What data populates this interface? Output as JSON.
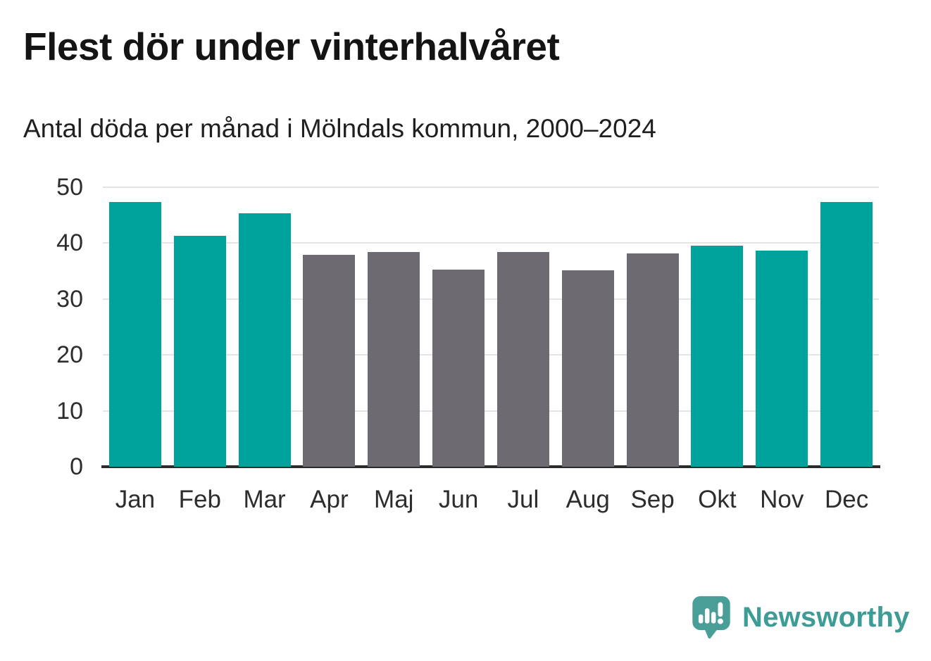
{
  "title": "Flest dör under vinterhalvåret",
  "subtitle": "Antal döda per månad i Mölndals kommun, 2000–2024",
  "brand": {
    "name": "Newsworthy",
    "icon": "newsworthy-speech-bubble-bar-chart-icon",
    "wordmark_color": "#3d9c95",
    "icon_color": "#4a9e98"
  },
  "colors": {
    "winter_bar": "#00a39b",
    "summer_bar": "#6d6a72",
    "gridline": "#e4e4e4",
    "axis_line": "#2b2b2b",
    "text": "#2d2d2d"
  },
  "chart_data": {
    "type": "bar",
    "title": "Flest dör under vinterhalvåret",
    "subtitle": "Antal döda per månad i Mölndals kommun, 2000–2024",
    "categories": [
      "Jan",
      "Feb",
      "Mar",
      "Apr",
      "Maj",
      "Jun",
      "Jul",
      "Aug",
      "Sep",
      "Okt",
      "Nov",
      "Dec"
    ],
    "values": [
      47.4,
      41.3,
      45.3,
      37.9,
      38.4,
      35.3,
      38.4,
      35.2,
      38.2,
      39.6,
      38.7,
      47.4
    ],
    "season": [
      "winter",
      "winter",
      "winter",
      "summer",
      "summer",
      "summer",
      "summer",
      "summer",
      "summer",
      "winter",
      "winter",
      "winter"
    ],
    "xlabel": "",
    "ylabel": "",
    "ylim": [
      0,
      50
    ],
    "yticks": [
      0,
      10,
      20,
      30,
      40,
      50
    ],
    "grid": true,
    "legend_position": "none"
  }
}
